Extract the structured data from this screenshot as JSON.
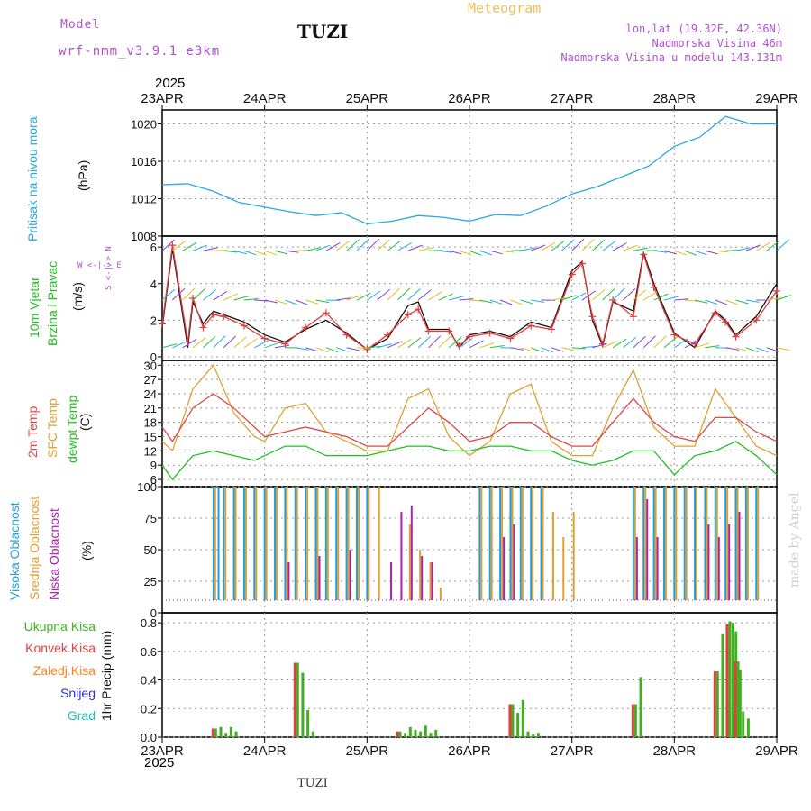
{
  "header": {
    "model_label": "Model",
    "model_name": "wrf-nmm_v3.9.1 e3km",
    "station": "TUZI",
    "meteogram": "Meteogram",
    "lonlat": "lon,lat (19.32E, 42.36N)",
    "altitude": "Nadmorska Visina 46m",
    "model_altitude": "Nadmorska Visina u modelu 143.131m",
    "year_top": "2025"
  },
  "footer": {
    "station": "TUZI",
    "year": "2025",
    "made_by": "made by Angel"
  },
  "colors": {
    "pressure": "#2aa8e0",
    "wind_speed": "#111111",
    "gust": "#e03c3c",
    "temp2m": "#e04848",
    "sfc_temp": "#e0a030",
    "dewpt": "#20c020",
    "cloud_high": "#20a0e0",
    "cloud_mid": "#e0a030",
    "cloud_low": "#b020b0",
    "precip_total": "#40b020",
    "precip_conv": "#e04040",
    "precip_freeze": "#ff8020",
    "snow": "#3030e0",
    "hail": "#20c0c0"
  },
  "panel_labels": {
    "pressure": [
      "Pritisak na nivou mora",
      "(hPa)"
    ],
    "wind": [
      "10m Vjetar",
      "Brzina i Pravac",
      "(m/s)"
    ],
    "wind_compass": "W <-|-> E",
    "wind_compass2": "S <-|-> N",
    "temp": [
      "2m Temp",
      "SFC Temp",
      "dewpt Temp",
      "(C)"
    ],
    "cloud": [
      "Visoka Oblacnost",
      "Srednja Oblacnost",
      "Niska Oblacnost",
      "(%)"
    ],
    "precip": [
      "Ukupna Kisa",
      "Konvek.Kisa",
      "Zaledj.Kisa",
      "Snijeg",
      "Grad",
      "1hr Precip (mm)"
    ]
  },
  "chart_data": [
    {
      "type": "line",
      "title": "Pritisak na nivou mora",
      "ylabel": "(hPa)",
      "x_days": [
        "23APR",
        "24APR",
        "25APR",
        "26APR",
        "27APR",
        "28APR",
        "29APR"
      ],
      "yticks": [
        1008,
        1012,
        1016,
        1020
      ],
      "ylim": [
        1008,
        1021.5
      ],
      "series": [
        {
          "name": "pressure",
          "x": [
            0,
            0.25,
            0.5,
            0.75,
            1,
            1.25,
            1.5,
            1.75,
            2,
            2.25,
            2.5,
            2.75,
            3,
            3.25,
            3.5,
            3.75,
            4,
            4.25,
            4.5,
            4.75,
            5,
            5.25,
            5.5,
            5.75,
            6
          ],
          "values": [
            1013.5,
            1013.6,
            1012.8,
            1011.6,
            1011.1,
            1010.6,
            1010.2,
            1010.5,
            1009.3,
            1009.6,
            1010.2,
            1010.0,
            1009.6,
            1010.3,
            1010.2,
            1011.2,
            1012.5,
            1013.3,
            1014.4,
            1015.5,
            1017.6,
            1018.6,
            1020.8,
            1020.0,
            1020.0
          ]
        }
      ]
    },
    {
      "type": "line",
      "title": "10m Vjetar Brzina i Pravac",
      "ylabel": "(m/s)",
      "yticks": [
        0,
        2,
        4,
        6
      ],
      "ylim": [
        -0.2,
        6.6
      ],
      "series": [
        {
          "name": "wind speed",
          "x": [
            0,
            0.1,
            0.25,
            0.3,
            0.4,
            0.5,
            0.6,
            0.8,
            1,
            1.2,
            1.4,
            1.6,
            1.8,
            2,
            2.2,
            2.4,
            2.5,
            2.6,
            2.8,
            2.9,
            3,
            3.2,
            3.4,
            3.6,
            3.8,
            4,
            4.1,
            4.2,
            4.3,
            4.4,
            4.6,
            4.7,
            4.8,
            5,
            5.2,
            5.4,
            5.5,
            5.6,
            5.8,
            6
          ],
          "values": [
            1.6,
            5.9,
            0.5,
            3.0,
            1.8,
            2.5,
            2.3,
            1.9,
            1.2,
            0.8,
            1.5,
            2.0,
            1.3,
            0.4,
            1.0,
            2.8,
            3.0,
            1.5,
            1.5,
            0.5,
            1.2,
            1.4,
            1.1,
            1.9,
            1.6,
            4.7,
            5.2,
            2.0,
            0.6,
            3.0,
            2.5,
            5.7,
            4.0,
            1.3,
            0.5,
            2.5,
            2.0,
            1.2,
            2.2,
            4.0
          ]
        },
        {
          "name": "gust",
          "x": [
            0,
            0.1,
            0.25,
            0.3,
            0.4,
            0.5,
            0.6,
            0.8,
            1,
            1.2,
            1.4,
            1.6,
            1.8,
            2,
            2.2,
            2.4,
            2.5,
            2.6,
            2.8,
            2.9,
            3,
            3.2,
            3.4,
            3.6,
            3.8,
            4,
            4.1,
            4.2,
            4.3,
            4.4,
            4.6,
            4.7,
            4.8,
            5,
            5.2,
            5.4,
            5.5,
            5.6,
            5.8,
            6
          ],
          "values": [
            1.8,
            6.1,
            0.8,
            3.2,
            1.6,
            2.3,
            2.2,
            1.7,
            1.0,
            0.7,
            1.6,
            2.4,
            1.2,
            0.4,
            1.2,
            2.3,
            2.6,
            1.4,
            1.4,
            0.6,
            1.1,
            1.3,
            1.0,
            1.7,
            1.5,
            4.5,
            5.1,
            2.2,
            0.7,
            3.1,
            2.2,
            5.6,
            3.8,
            1.2,
            0.7,
            2.4,
            1.9,
            1.1,
            2.0,
            3.6
          ]
        }
      ]
    },
    {
      "type": "line",
      "title": "Temp",
      "ylabel": "(C)",
      "yticks": [
        6,
        9,
        12,
        15,
        18,
        21,
        24,
        27,
        30
      ],
      "ylim": [
        4.5,
        31
      ],
      "series": [
        {
          "name": "2m Temp",
          "x": [
            0,
            0.1,
            0.3,
            0.5,
            0.7,
            0.9,
            1,
            1.2,
            1.4,
            1.6,
            1.8,
            2,
            2.2,
            2.4,
            2.6,
            2.8,
            3,
            3.2,
            3.4,
            3.6,
            3.8,
            4,
            4.2,
            4.4,
            4.6,
            4.8,
            5,
            5.2,
            5.4,
            5.6,
            5.8,
            6
          ],
          "values": [
            17,
            14,
            21,
            24,
            21,
            17,
            15,
            16,
            17,
            16,
            15,
            13,
            13,
            17,
            21,
            18,
            14,
            15,
            18,
            18,
            15,
            13,
            13,
            18,
            23,
            18,
            15,
            14,
            19,
            19,
            16,
            14
          ]
        },
        {
          "name": "SFC Temp",
          "x": [
            0,
            0.1,
            0.3,
            0.5,
            0.7,
            0.9,
            1,
            1.2,
            1.4,
            1.6,
            1.8,
            2,
            2.2,
            2.4,
            2.6,
            2.8,
            3,
            3.2,
            3.4,
            3.6,
            3.8,
            4,
            4.2,
            4.4,
            4.6,
            4.8,
            5,
            5.2,
            5.4,
            5.6,
            5.8,
            6
          ],
          "values": [
            14,
            12,
            25,
            30,
            20,
            15,
            14,
            21,
            22,
            16,
            14,
            12,
            12,
            23,
            25,
            15,
            11,
            14,
            24,
            26,
            14,
            11,
            11,
            21,
            29,
            17,
            13,
            13,
            25,
            19,
            13,
            11
          ]
        },
        {
          "name": "dewpt Temp",
          "x": [
            0,
            0.1,
            0.3,
            0.5,
            0.7,
            0.9,
            1,
            1.2,
            1.4,
            1.6,
            1.8,
            2,
            2.2,
            2.4,
            2.6,
            2.8,
            3,
            3.2,
            3.4,
            3.6,
            3.8,
            4,
            4.2,
            4.4,
            4.6,
            4.8,
            5,
            5.2,
            5.4,
            5.6,
            5.8,
            6
          ],
          "values": [
            9,
            6,
            11,
            12,
            11,
            10,
            11,
            13,
            13,
            11,
            11,
            11,
            12,
            13,
            13,
            12,
            12,
            13,
            13,
            12,
            12,
            10,
            9,
            10,
            12,
            12,
            7,
            11,
            12,
            14,
            11,
            7
          ]
        }
      ]
    },
    {
      "type": "bar",
      "title": "Oblacnost",
      "ylabel": "(%)",
      "yticks": [
        0,
        25,
        50,
        75,
        100
      ],
      "ylim": [
        0,
        100
      ],
      "series": [
        {
          "name": "Visoka Oblacnost",
          "x": [
            0.5,
            0.55,
            0.6,
            0.7,
            0.8,
            0.9,
            1.0,
            1.1,
            1.2,
            1.3,
            1.4,
            1.5,
            1.6,
            1.7,
            1.8,
            1.9,
            2.0,
            3.1,
            3.2,
            3.3,
            3.4,
            3.5,
            3.6,
            3.7,
            4.6,
            4.7,
            4.8,
            4.9,
            5.0,
            5.1,
            5.2,
            5.3,
            5.4,
            5.5,
            5.6,
            5.7,
            5.8
          ],
          "values": [
            100,
            100,
            100,
            100,
            100,
            100,
            100,
            100,
            100,
            100,
            100,
            100,
            100,
            100,
            100,
            100,
            100,
            100,
            100,
            100,
            100,
            100,
            100,
            100,
            100,
            100,
            100,
            100,
            100,
            100,
            100,
            100,
            100,
            100,
            100,
            100,
            100
          ]
        },
        {
          "name": "Srednja Oblacnost",
          "x": [
            0.5,
            0.6,
            0.7,
            0.8,
            0.9,
            1.0,
            1.1,
            1.2,
            1.3,
            1.4,
            1.5,
            1.6,
            1.7,
            1.8,
            1.9,
            2.0,
            2.1,
            2.4,
            2.5,
            2.6,
            2.7,
            3.1,
            3.2,
            3.3,
            3.4,
            3.5,
            3.6,
            3.7,
            3.8,
            3.9,
            4.0,
            4.6,
            4.7,
            4.8,
            4.9,
            5.0,
            5.1,
            5.2,
            5.3,
            5.4,
            5.5,
            5.6,
            5.7,
            5.8
          ],
          "values": [
            100,
            100,
            100,
            100,
            100,
            100,
            100,
            100,
            100,
            100,
            100,
            100,
            100,
            100,
            100,
            100,
            100,
            70,
            50,
            40,
            20,
            100,
            100,
            100,
            100,
            100,
            100,
            100,
            80,
            60,
            80,
            100,
            100,
            100,
            100,
            100,
            100,
            100,
            100,
            100,
            100,
            100,
            100,
            100
          ]
        },
        {
          "name": "Niska Oblacnost",
          "x": [
            1.2,
            1.5,
            1.8,
            2.2,
            2.3,
            2.4,
            2.5,
            2.6,
            3.3,
            3.4,
            4.6,
            4.7,
            4.8,
            5.3,
            5.4,
            5.5,
            5.6
          ],
          "values": [
            40,
            45,
            50,
            40,
            80,
            85,
            45,
            40,
            60,
            70,
            60,
            90,
            60,
            70,
            60,
            70,
            80
          ]
        }
      ]
    },
    {
      "type": "bar",
      "title": "1hr Precip",
      "ylabel": "1hr Precip (mm)",
      "yticks": [
        0.0,
        0.2,
        0.4,
        0.6,
        0.8
      ],
      "ylim": [
        0,
        0.87
      ],
      "series": [
        {
          "name": "Ukupna Kisa",
          "x": [
            0.5,
            0.55,
            0.6,
            0.65,
            0.7,
            1.3,
            1.35,
            1.4,
            1.45,
            2.3,
            2.35,
            2.4,
            2.45,
            2.5,
            2.55,
            2.6,
            2.65,
            3.4,
            3.45,
            3.5,
            3.55,
            3.6,
            3.65,
            4.6,
            4.65,
            5.4,
            5.45,
            5.5,
            5.52,
            5.55,
            5.58,
            5.6,
            5.62,
            5.65,
            5.7
          ],
          "values": [
            0.06,
            0.07,
            0.03,
            0.07,
            0.04,
            0.52,
            0.45,
            0.19,
            0.04,
            0.04,
            0.03,
            0.07,
            0.05,
            0.04,
            0.08,
            0.03,
            0.05,
            0.23,
            0.17,
            0.26,
            0.04,
            0.02,
            0.03,
            0.23,
            0.42,
            0.46,
            0.72,
            0.25,
            0.81,
            0.8,
            0.74,
            0.53,
            0.47,
            0.18,
            0.13
          ]
        },
        {
          "name": "Konvek.Kisa",
          "x": [
            0.5,
            1.3,
            2.3,
            3.4,
            4.6,
            5.4,
            5.52,
            5.6
          ],
          "values": [
            0.06,
            0.52,
            0.04,
            0.23,
            0.23,
            0.46,
            0.79,
            0.53
          ]
        }
      ]
    }
  ]
}
